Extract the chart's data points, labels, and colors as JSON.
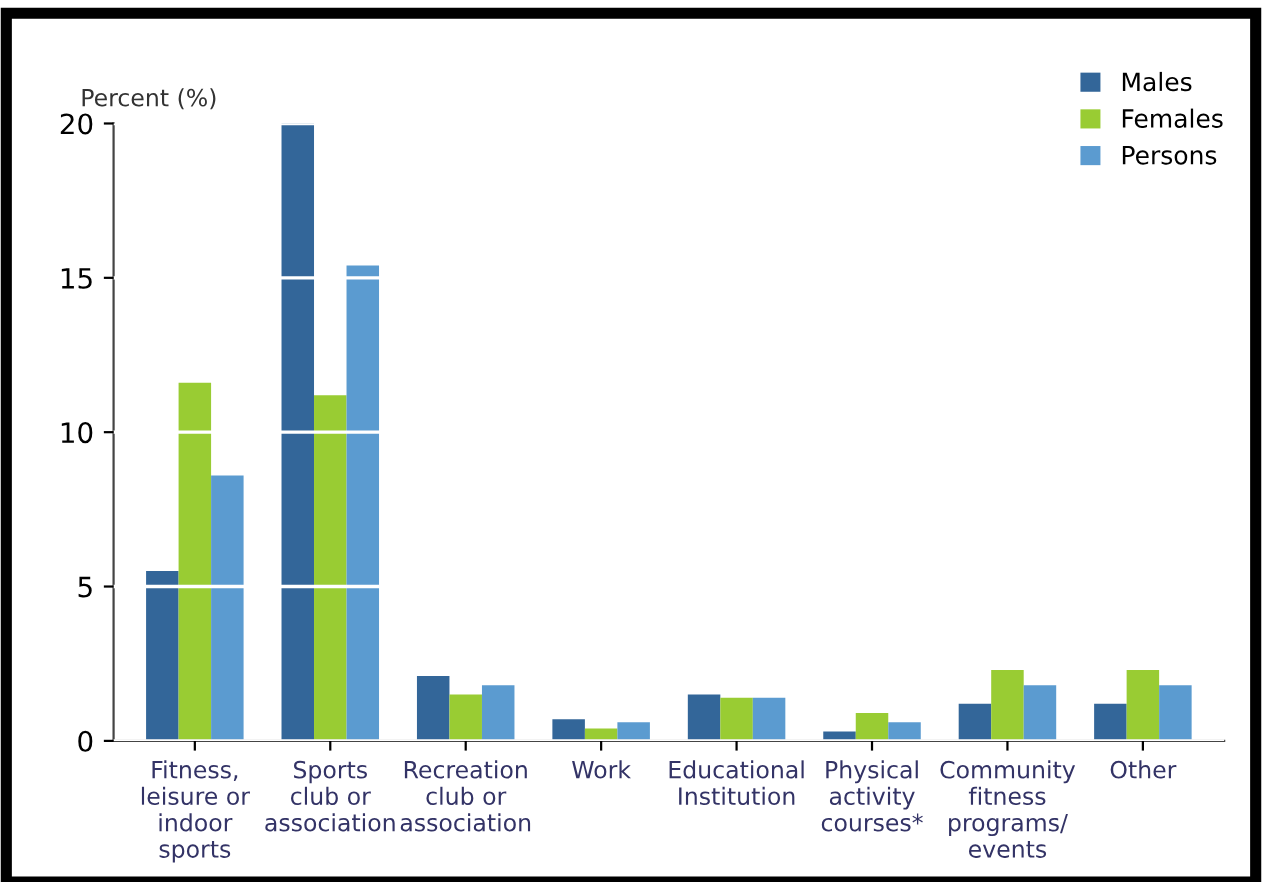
{
  "chart_data": {
    "type": "bar",
    "ylabel": "Percent (%)",
    "categories": [
      "Fitness,\nleisure or\nindoor\nsports",
      "Sports\nclub or\nassociation",
      "Recreation\nclub or\nassociation",
      "Work",
      "Educational\nInstitution",
      "Physical\nactivity\ncourses*",
      "Community\nfitness\nprograms/\nevents",
      "Other"
    ],
    "series": [
      {
        "name": "Males",
        "color": "#336699",
        "values": [
          5.5,
          20,
          2.1,
          0.7,
          1.5,
          0.3,
          1.2,
          1.2
        ]
      },
      {
        "name": "Females",
        "color": "#99cc33",
        "values": [
          11.6,
          11.2,
          1.5,
          0.4,
          1.4,
          0.9,
          2.3,
          2.3
        ]
      },
      {
        "name": "Persons",
        "color": "#5b9bd0",
        "values": [
          8.6,
          15.4,
          1.8,
          0.6,
          1.4,
          0.6,
          1.8,
          1.8
        ]
      }
    ],
    "ylim": [
      0,
      20
    ],
    "yticks": [
      0,
      5,
      10,
      15,
      20
    ],
    "grid": "y",
    "legend": "top right"
  }
}
